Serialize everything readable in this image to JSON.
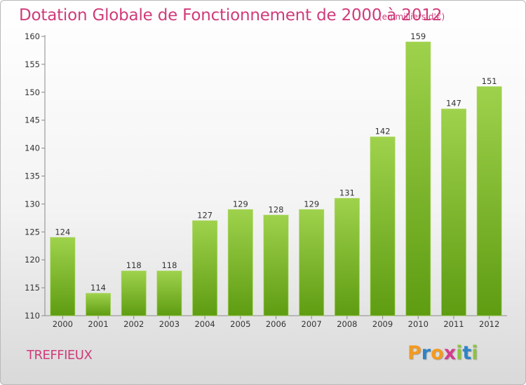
{
  "title": "Dotation Globale de Fonctionnement de 2000 à 2012",
  "subtitle": "(en milliers d'€)",
  "commune": "TREFFIEUX",
  "logo": {
    "letters": [
      "P",
      "r",
      "o",
      "x",
      "i",
      "t",
      "i"
    ],
    "colors": [
      "#f39a1f",
      "#2e83c7",
      "#f39a1f",
      "#d33c8d",
      "#8cc43f",
      "#2e83c7",
      "#8cc43f"
    ]
  },
  "chart_data": {
    "type": "bar",
    "title": "Dotation Globale de Fonctionnement de 2000 à 2012",
    "subtitle": "(en milliers d'€)",
    "categories": [
      "2000",
      "2001",
      "2002",
      "2003",
      "2004",
      "2005",
      "2006",
      "2007",
      "2008",
      "2009",
      "2010",
      "2011",
      "2012"
    ],
    "values": [
      124,
      114,
      118,
      118,
      127,
      129,
      128,
      129,
      131,
      142,
      159,
      147,
      151
    ],
    "ylim": [
      110,
      160
    ],
    "yticks": [
      110,
      115,
      120,
      125,
      130,
      135,
      140,
      145,
      150,
      155,
      160
    ],
    "grid": false,
    "legend": "none",
    "bar_color": "#7fbf2c",
    "bar_color_light": "#9fd24c",
    "bar_color_dark": "#5e9c12"
  }
}
